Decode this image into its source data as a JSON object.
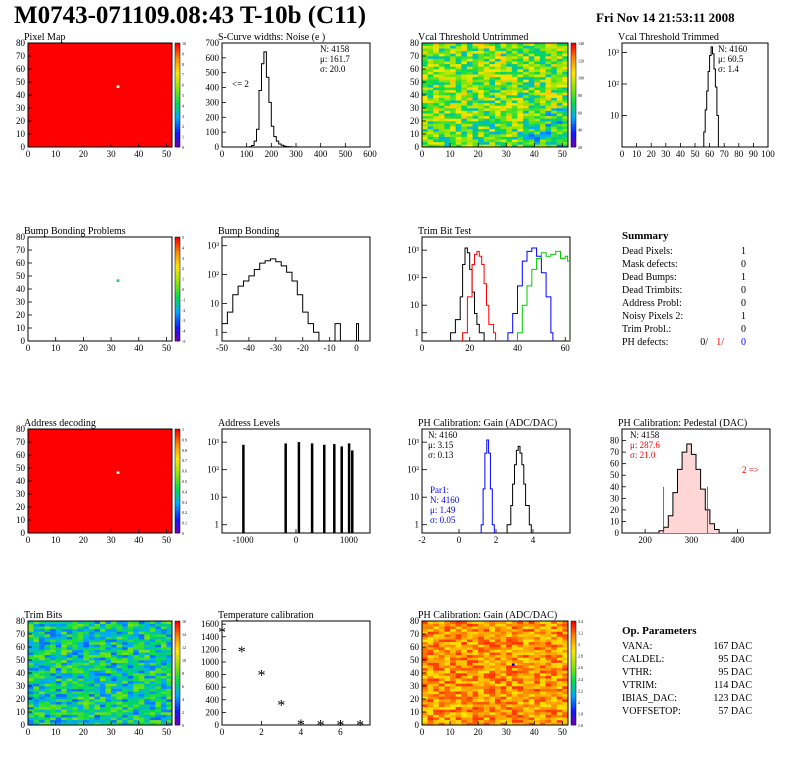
{
  "header": {
    "title": "M0743-071109.08:43 T-10b (C11)",
    "date": "Fri Nov 14 21:53:11 2008"
  },
  "summary": {
    "title": "Summary",
    "rows": [
      {
        "label": "Dead Pixels:",
        "value": "1"
      },
      {
        "label": "Mask defects:",
        "value": "0"
      },
      {
        "label": "Dead Bumps:",
        "value": "1"
      },
      {
        "label": "Dead Trimbits:",
        "value": "0"
      },
      {
        "label": "Address Probl:",
        "value": "0"
      },
      {
        "label": "Noisy Pixels 2:",
        "value": "1"
      },
      {
        "label": "Trim Probl.:",
        "value": "0"
      }
    ],
    "ph_defects": {
      "label": "PH defects:",
      "values": [
        "0/",
        "1/",
        "0"
      ],
      "colors": [
        "#000000",
        "#ff0000",
        "#0000ff"
      ]
    }
  },
  "op_params": {
    "title": "Op. Parameters",
    "rows": [
      {
        "label": "VANA:",
        "value": "167 DAC"
      },
      {
        "label": "CALDEL:",
        "value": "95 DAC"
      },
      {
        "label": "VTHR:",
        "value": "95 DAC"
      },
      {
        "label": "VTRIM:",
        "value": "114 DAC"
      },
      {
        "label": "IBIAS_DAC:",
        "value": "123 DAC"
      },
      {
        "label": "VOFFSETOP:",
        "value": "57 DAC"
      }
    ]
  },
  "chart_data": [
    {
      "id": "pixel_map",
      "type": "heatmap",
      "title": "Pixel Map",
      "xlim": [
        0,
        52
      ],
      "ylim": [
        0,
        80
      ],
      "xticks": [
        0,
        10,
        20,
        30,
        40,
        50
      ],
      "yticks": [
        0,
        10,
        20,
        30,
        40,
        50,
        60,
        70,
        80
      ],
      "palette_colorbar": "rainbow",
      "zlim": [
        0,
        10
      ],
      "zticks": [
        "0",
        "1",
        "2",
        "3",
        "4",
        "5",
        "6",
        "7",
        "8",
        "9",
        "10"
      ],
      "fill": "uniform-max",
      "special_pixels": [
        {
          "col": 32,
          "row": 46,
          "color": "#ffffff"
        }
      ]
    },
    {
      "id": "scurve",
      "type": "line",
      "title": "S-Curve widths: Noise (e )",
      "xlim": [
        0,
        600
      ],
      "ylim": [
        0,
        700
      ],
      "xticks": [
        0,
        100,
        200,
        300,
        400,
        500,
        600
      ],
      "yticks": [
        0,
        100,
        200,
        300,
        400,
        500,
        600,
        700
      ],
      "stats": [
        "N: 4158",
        "μ: 161.7",
        "σ: 20.0"
      ],
      "annotation": "<= 2",
      "series": [
        {
          "x": [
            100,
            110,
            120,
            130,
            140,
            150,
            160,
            170,
            180,
            190,
            200,
            210,
            220,
            230,
            240,
            250,
            260,
            270,
            280,
            290,
            300
          ],
          "y": [
            0,
            2,
            10,
            40,
            120,
            380,
            560,
            640,
            470,
            300,
            140,
            70,
            40,
            20,
            12,
            6,
            3,
            2,
            1,
            0,
            0
          ]
        }
      ]
    },
    {
      "id": "vcal_untrimmed",
      "type": "heatmap",
      "title": "Vcal Threshold Untrimmed",
      "xlim": [
        0,
        52
      ],
      "ylim": [
        0,
        80
      ],
      "xticks": [
        0,
        10,
        20,
        30,
        40,
        50
      ],
      "yticks": [
        0,
        10,
        20,
        30,
        40,
        50,
        60,
        70,
        80
      ],
      "zlim": [
        0,
        150
      ],
      "zticks": [
        "20",
        "40",
        "60",
        "80",
        "100",
        "120",
        "140"
      ],
      "fill": "noise-mid"
    },
    {
      "id": "vcal_trimmed",
      "type": "line",
      "title": "Vcal Threshold Trimmed",
      "xlim": [
        0,
        100
      ],
      "ylog": true,
      "ylim": [
        1,
        2000
      ],
      "xticks": [
        0,
        10,
        20,
        30,
        40,
        50,
        60,
        70,
        80,
        90,
        100
      ],
      "ytick_labels": [
        "10",
        "10²",
        "10³"
      ],
      "ytick_values": [
        10,
        100,
        1000
      ],
      "stats": [
        "N: 4160",
        "μ: 60.5",
        "σ: 1.4"
      ],
      "series": [
        {
          "x": [
            55,
            56,
            57,
            58,
            59,
            60,
            61,
            62,
            63,
            64,
            65,
            66
          ],
          "y": [
            1,
            3,
            15,
            60,
            250,
            800,
            1500,
            900,
            300,
            80,
            10,
            1
          ]
        }
      ]
    },
    {
      "id": "bump_problems",
      "type": "heatmap",
      "title": "Bump Bonding Problems",
      "xlim": [
        0,
        52
      ],
      "ylim": [
        0,
        80
      ],
      "xticks": [
        0,
        10,
        20,
        30,
        40,
        50
      ],
      "yticks": [
        0,
        10,
        20,
        30,
        40,
        50,
        60,
        70,
        80
      ],
      "zlim": [
        -5,
        5
      ],
      "zticks": [
        "-5",
        "-4",
        "-3",
        "-2",
        "-1",
        "0",
        "1",
        "2",
        "3",
        "4",
        "5"
      ],
      "fill": "empty",
      "special_pixels": [
        {
          "col": 32,
          "row": 46,
          "color": "#22cc44"
        }
      ]
    },
    {
      "id": "bump_bonding",
      "type": "line",
      "title": "Bump Bonding",
      "xlim": [
        -50,
        5
      ],
      "ylog": true,
      "ylim": [
        0.5,
        2000
      ],
      "xticks": [
        -50,
        -40,
        -30,
        -20,
        -10,
        0
      ],
      "ytick_labels": [
        "1",
        "10",
        "10²",
        "10³"
      ],
      "ytick_values": [
        1,
        10,
        100,
        1000
      ],
      "series": [
        {
          "x": [
            -50,
            -48,
            -46,
            -44,
            -42,
            -40,
            -38,
            -36,
            -34,
            -32,
            -30,
            -28,
            -26,
            -24,
            -22,
            -20,
            -18,
            -16,
            -14,
            -12,
            -10,
            -8,
            -6,
            -4,
            -2,
            0
          ],
          "y": [
            2,
            5,
            20,
            40,
            60,
            90,
            150,
            250,
            300,
            350,
            280,
            200,
            120,
            60,
            20,
            5,
            2,
            1,
            0.5,
            0.5,
            0.5,
            2,
            0.5,
            0.5,
            0.5,
            2
          ]
        }
      ]
    },
    {
      "id": "trim_bit_test",
      "type": "line",
      "title": "Trim Bit Test",
      "xlim": [
        0,
        62
      ],
      "ylog": true,
      "ylim": [
        0.5,
        3000
      ],
      "xticks": [
        0,
        20,
        40,
        60
      ],
      "ytick_labels": [
        "1",
        "10",
        "10²",
        "10³"
      ],
      "ytick_values": [
        1,
        10,
        100,
        1000
      ],
      "series": [
        {
          "color": "#000000",
          "x": [
            12,
            14,
            16,
            17,
            18,
            19,
            20,
            21,
            22,
            23,
            24,
            26
          ],
          "y": [
            1,
            3,
            20,
            300,
            1200,
            800,
            200,
            30,
            5,
            2,
            1,
            0.5
          ]
        },
        {
          "color": "#ff0000",
          "x": [
            17,
            19,
            21,
            22,
            23,
            24,
            25,
            26,
            27,
            28,
            30
          ],
          "y": [
            1,
            20,
            300,
            700,
            900,
            600,
            300,
            60,
            10,
            2,
            1
          ]
        },
        {
          "color": "#0000ff",
          "x": [
            36,
            38,
            40,
            42,
            44,
            46,
            48,
            50,
            52,
            54
          ],
          "y": [
            1,
            5,
            50,
            400,
            900,
            1200,
            600,
            150,
            20,
            1
          ]
        },
        {
          "color": "#00cc00",
          "x": [
            40,
            42,
            44,
            46,
            48,
            50,
            52,
            54,
            56,
            58,
            60,
            61
          ],
          "y": [
            1,
            10,
            50,
            200,
            500,
            800,
            600,
            700,
            900,
            500,
            600,
            400
          ]
        }
      ]
    },
    {
      "id": "address_decoding",
      "type": "heatmap",
      "title": "Address decoding",
      "xlim": [
        0,
        52
      ],
      "ylim": [
        0,
        80
      ],
      "xticks": [
        0,
        10,
        20,
        30,
        40,
        50
      ],
      "yticks": [
        0,
        10,
        20,
        30,
        40,
        50,
        60,
        70,
        80
      ],
      "zlim": [
        0,
        1
      ],
      "zticks": [
        "0",
        "0.1",
        "0.2",
        "0.3",
        "0.4",
        "0.5",
        "0.6",
        "0.7",
        "0.8",
        "0.9",
        "1"
      ],
      "fill": "uniform-max",
      "special_pixels": [
        {
          "col": 32,
          "row": 46,
          "color": "#ffffff"
        }
      ]
    },
    {
      "id": "address_levels",
      "type": "bar",
      "title": "Address Levels",
      "xlim": [
        -1400,
        1400
      ],
      "ylog": true,
      "ylim": [
        0.5,
        3000
      ],
      "xticks": [
        -1000,
        0,
        1000
      ],
      "ytick_labels": [
        "1",
        "10",
        "10²",
        "10³"
      ],
      "ytick_values": [
        1,
        10,
        100,
        1000
      ],
      "x": [
        -1000,
        -200,
        50,
        300,
        530,
        720,
        860,
        1000,
        1060
      ],
      "values": [
        800,
        900,
        1000,
        900,
        800,
        850,
        700,
        900,
        500
      ]
    },
    {
      "id": "ph_gain",
      "type": "line",
      "title": "PH Calibration: Gain (ADC/DAC)",
      "xlim": [
        -2,
        6
      ],
      "ylog": true,
      "ylim": [
        0.5,
        3000
      ],
      "xticks": [
        -2,
        0,
        2,
        4
      ],
      "ytick_labels": [
        "1",
        "10",
        "10²",
        "10³"
      ],
      "ytick_values": [
        1,
        10,
        100,
        1000
      ],
      "stats": [
        "N: 4160",
        "μ: 3.15",
        "σ: 0.13"
      ],
      "fit_stats": [
        "Par1:",
        "N: 4160",
        "μ: 1.49",
        "σ: 0.05"
      ],
      "series": [
        {
          "color": "#000000",
          "x": [
            2.6,
            2.8,
            2.9,
            3.0,
            3.1,
            3.2,
            3.3,
            3.4,
            3.5,
            3.6,
            3.8
          ],
          "y": [
            1,
            5,
            30,
            150,
            500,
            700,
            400,
            150,
            30,
            5,
            1
          ]
        },
        {
          "color": "#0000ff",
          "x": [
            1.2,
            1.3,
            1.4,
            1.5,
            1.6,
            1.7,
            1.8
          ],
          "y": [
            1,
            20,
            400,
            1200,
            400,
            20,
            1
          ]
        }
      ]
    },
    {
      "id": "ph_pedestal",
      "type": "line",
      "title": "PH Calibration: Pedestal (DAC)",
      "xlim": [
        150,
        470
      ],
      "ylim": [
        0,
        90
      ],
      "xticks": [
        200,
        300,
        400
      ],
      "yticks": [
        0,
        10,
        20,
        30,
        40,
        50,
        60,
        70,
        80
      ],
      "stats": [
        "N: 4158",
        "μ: 287.6",
        "σ: 21.0"
      ],
      "annotation": "2 =>",
      "series": [
        {
          "x": [
            220,
            230,
            240,
            250,
            260,
            270,
            280,
            290,
            300,
            310,
            320,
            330,
            340,
            350,
            360
          ],
          "y": [
            0,
            2,
            5,
            15,
            35,
            55,
            70,
            77,
            68,
            55,
            38,
            20,
            8,
            3,
            0
          ]
        }
      ]
    },
    {
      "id": "trim_bits",
      "type": "heatmap",
      "title": "Trim Bits",
      "xlim": [
        0,
        52
      ],
      "ylim": [
        0,
        80
      ],
      "xticks": [
        0,
        10,
        20,
        30,
        40,
        50
      ],
      "yticks": [
        0,
        10,
        20,
        30,
        40,
        50,
        60,
        70,
        80
      ],
      "zlim": [
        0,
        16
      ],
      "zticks": [
        "0",
        "2",
        "4",
        "6",
        "8",
        "10",
        "12",
        "14",
        "16"
      ],
      "fill": "noise-low"
    },
    {
      "id": "temperature",
      "type": "scatter",
      "title": "Temperature calibration",
      "xlim": [
        0,
        7.5
      ],
      "ylim": [
        0,
        1650
      ],
      "xticks": [
        0,
        2,
        4,
        6
      ],
      "yticks": [
        0,
        200,
        400,
        600,
        800,
        1000,
        1200,
        1400,
        1600
      ],
      "x": [
        0,
        1,
        2,
        3,
        4,
        5,
        6,
        7
      ],
      "y": [
        1500,
        1190,
        820,
        340,
        30,
        20,
        20,
        20
      ]
    },
    {
      "id": "ph_gain_map",
      "type": "heatmap",
      "title": "PH Calibration: Gain (ADC/DAC)",
      "xlim": [
        0,
        52
      ],
      "ylim": [
        0,
        80
      ],
      "xticks": [
        0,
        10,
        20,
        30,
        40,
        50
      ],
      "yticks": [
        0,
        10,
        20,
        30,
        40,
        50,
        60,
        70,
        80
      ],
      "zlim": [
        1.4,
        3.4
      ],
      "zticks": [
        "1.6",
        "1.8",
        "2",
        "2.2",
        "2.4",
        "2.6",
        "2.8",
        "3",
        "3.2",
        "3.4"
      ],
      "fill": "noise-high",
      "special_pixels": [
        {
          "col": 32,
          "row": 46,
          "color": "#0000ff"
        }
      ]
    }
  ]
}
